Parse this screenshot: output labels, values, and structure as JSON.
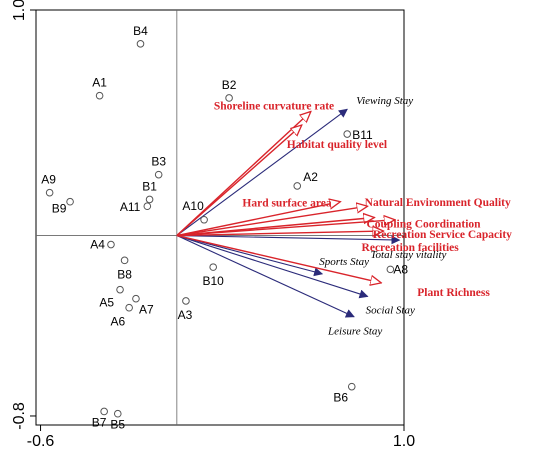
{
  "chart_data": {
    "type": "scatter",
    "title": "",
    "xlabel": "",
    "ylabel": "",
    "xlim": [
      -0.62,
      1.0
    ],
    "ylim": [
      -0.84,
      1.0
    ],
    "x_ticks": [
      {
        "value": -0.6,
        "label": "-0.6"
      },
      {
        "value": 1.0,
        "label": "1.0"
      }
    ],
    "y_ticks": [
      {
        "value": 1.0,
        "label": "1.0"
      },
      {
        "value": -0.8,
        "label": "-0.8"
      }
    ],
    "reference_lines": {
      "x": 0,
      "y": 0
    },
    "grid": false,
    "legend": "none",
    "colors": {
      "environmental_arrow": "#d9242b",
      "response_arrow": "#2b2b7a",
      "env_label": "#d9242b",
      "response_label": "#000000",
      "site_point": "#555555"
    },
    "sites": [
      {
        "name": "B4",
        "x": -0.16,
        "y": 0.85
      },
      {
        "name": "A1",
        "x": -0.34,
        "y": 0.62
      },
      {
        "name": "B2",
        "x": 0.23,
        "y": 0.61
      },
      {
        "name": "B11",
        "x": 0.75,
        "y": 0.45
      },
      {
        "name": "B3",
        "x": -0.08,
        "y": 0.27
      },
      {
        "name": "A2",
        "x": 0.53,
        "y": 0.22
      },
      {
        "name": "A9",
        "x": -0.56,
        "y": 0.19
      },
      {
        "name": "B1",
        "x": -0.12,
        "y": 0.16
      },
      {
        "name": "B9",
        "x": -0.47,
        "y": 0.15
      },
      {
        "name": "A11",
        "x": -0.13,
        "y": 0.13
      },
      {
        "name": "A10",
        "x": 0.12,
        "y": 0.07
      },
      {
        "name": "A4",
        "x": -0.29,
        "y": -0.04
      },
      {
        "name": "B8",
        "x": -0.23,
        "y": -0.11
      },
      {
        "name": "A8",
        "x": 0.94,
        "y": -0.15
      },
      {
        "name": "B10",
        "x": 0.16,
        "y": -0.14
      },
      {
        "name": "A5",
        "x": -0.25,
        "y": -0.24
      },
      {
        "name": "A7",
        "x": -0.18,
        "y": -0.28
      },
      {
        "name": "A3",
        "x": 0.04,
        "y": -0.29
      },
      {
        "name": "A6",
        "x": -0.21,
        "y": -0.32
      },
      {
        "name": "B6",
        "x": 0.77,
        "y": -0.67
      },
      {
        "name": "B7",
        "x": -0.32,
        "y": -0.78
      },
      {
        "name": "B5",
        "x": -0.26,
        "y": -0.79
      }
    ],
    "environmental_factors": [
      {
        "name": "Shoreline curvature rate",
        "x": 0.59,
        "y": 0.55
      },
      {
        "name": "Habitat quality level",
        "x": 0.55,
        "y": 0.49
      },
      {
        "name": "Hard surface area",
        "x": 0.72,
        "y": 0.15
      },
      {
        "name": "Natural Environment Quality",
        "x": 0.84,
        "y": 0.13
      },
      {
        "name": "Coupling Coordination",
        "x": 0.87,
        "y": 0.08
      },
      {
        "name": "Recreation Service Capacity",
        "x": 0.96,
        "y": 0.07
      },
      {
        "name": "Recreation  facilities",
        "x": 0.91,
        "y": 0.02
      },
      {
        "name": "Plant Richness",
        "x": 0.9,
        "y": -0.21
      }
    ],
    "response_variables": [
      {
        "name": "Viewing Stay",
        "x": 0.75,
        "y": 0.56
      },
      {
        "name": "Total stay vitality",
        "x": 0.98,
        "y": -0.02
      },
      {
        "name": "Sports Stay",
        "x": 0.64,
        "y": -0.17
      },
      {
        "name": "Social Stay",
        "x": 0.84,
        "y": -0.27
      },
      {
        "name": "Leisure Stay",
        "x": 0.78,
        "y": -0.36
      }
    ]
  }
}
